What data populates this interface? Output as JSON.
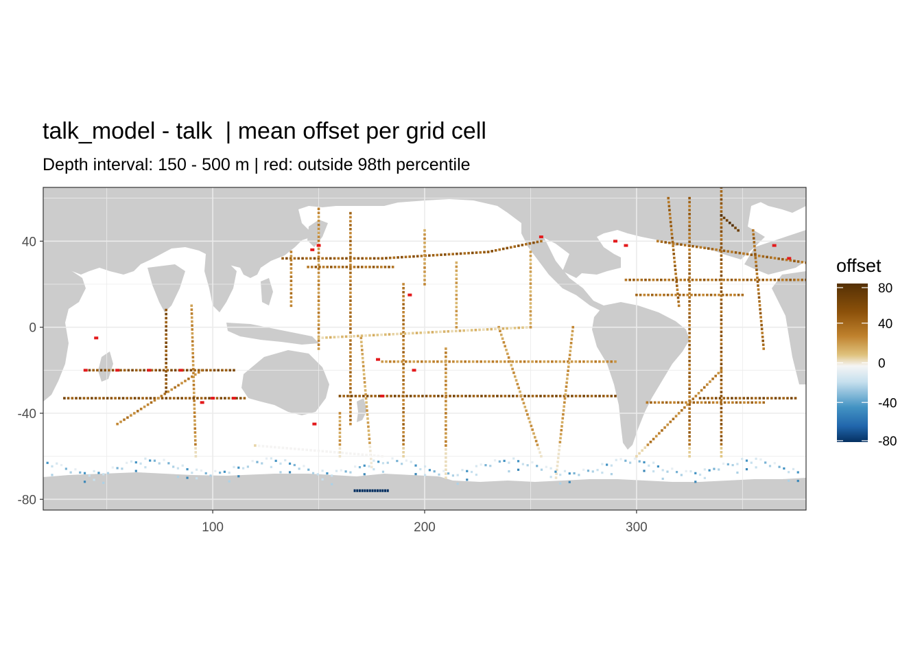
{
  "title": "talk_model - talk  | mean offset per grid cell",
  "subtitle": "Depth interval: 150 - 500 m | red: outside 98th percentile",
  "chart_data": {
    "type": "heatmap",
    "x_ticks": [
      100,
      200,
      300
    ],
    "y_ticks": [
      40,
      0,
      -40,
      -80
    ],
    "xlim": [
      20,
      380
    ],
    "ylim": [
      -85,
      65
    ],
    "legend": {
      "title": "offset",
      "ticks": [
        80,
        40,
        0,
        -40,
        -80
      ],
      "range": [
        -80,
        80
      ],
      "placement": "right"
    },
    "colors": {
      "land": "#cccccc",
      "ocean": "#ffffff",
      "outlier": "#e31a1c",
      "scale_low": "#053061",
      "scale_mid": "#f5f5f5",
      "scale_high": "#543005"
    },
    "tracks": [
      {
        "points": [
          [
            133,
            32
          ],
          [
            180,
            32
          ],
          [
            230,
            35
          ],
          [
            255,
            40
          ]
        ],
        "value": 55
      },
      {
        "points": [
          [
            150,
            55
          ],
          [
            150,
            -10
          ]
        ],
        "value": 35
      },
      {
        "points": [
          [
            165,
            53
          ],
          [
            165,
            -45
          ]
        ],
        "value": 45
      },
      {
        "points": [
          [
            137,
            35
          ],
          [
            137,
            10
          ]
        ],
        "value": 40
      },
      {
        "points": [
          [
            145,
            28
          ],
          [
            185,
            28
          ]
        ],
        "value": 50
      },
      {
        "points": [
          [
            90,
            10
          ],
          [
            92,
            -60
          ]
        ],
        "value": 35
      },
      {
        "points": [
          [
            78,
            8
          ],
          [
            78,
            -30
          ]
        ],
        "value": 60
      },
      {
        "points": [
          [
            40,
            -20
          ],
          [
            110,
            -20
          ]
        ],
        "value": 60
      },
      {
        "points": [
          [
            30,
            -33
          ],
          [
            115,
            -33
          ]
        ],
        "value": 60
      },
      {
        "points": [
          [
            160,
            -32
          ],
          [
            290,
            -32
          ]
        ],
        "value": 60
      },
      {
        "points": [
          [
            180,
            -16
          ],
          [
            290,
            -16
          ]
        ],
        "value": 35
      },
      {
        "points": [
          [
            190,
            20
          ],
          [
            190,
            -60
          ]
        ],
        "value": 45
      },
      {
        "points": [
          [
            210,
            -10
          ],
          [
            210,
            -70
          ]
        ],
        "value": 35
      },
      {
        "points": [
          [
            235,
            0
          ],
          [
            255,
            -60
          ]
        ],
        "value": 30
      },
      {
        "points": [
          [
            270,
            0
          ],
          [
            262,
            -70
          ]
        ],
        "value": 30
      },
      {
        "points": [
          [
            170,
            -5
          ],
          [
            175,
            -65
          ]
        ],
        "value": 25
      },
      {
        "points": [
          [
            55,
            -45
          ],
          [
            95,
            -20
          ]
        ],
        "value": 40
      },
      {
        "points": [
          [
            310,
            40
          ],
          [
            380,
            30
          ]
        ],
        "value": 50
      },
      {
        "points": [
          [
            295,
            22
          ],
          [
            380,
            22
          ]
        ],
        "value": 50
      },
      {
        "points": [
          [
            330,
            -33
          ],
          [
            375,
            -33
          ]
        ],
        "value": 60
      },
      {
        "points": [
          [
            325,
            60
          ],
          [
            325,
            -60
          ]
        ],
        "value": 50
      },
      {
        "points": [
          [
            340,
            65
          ],
          [
            340,
            -60
          ]
        ],
        "value": 55
      },
      {
        "points": [
          [
            315,
            60
          ],
          [
            320,
            10
          ]
        ],
        "value": 50
      },
      {
        "points": [
          [
            355,
            45
          ],
          [
            360,
            -10
          ]
        ],
        "value": 50
      },
      {
        "points": [
          [
            300,
            -60
          ],
          [
            340,
            -20
          ]
        ],
        "value": 40
      },
      {
        "points": [
          [
            305,
            -35
          ],
          [
            360,
            -35
          ]
        ],
        "value": 45
      },
      {
        "points": [
          [
            300,
            15
          ],
          [
            350,
            15
          ]
        ],
        "value": 45
      },
      {
        "points": [
          [
            340,
            52
          ],
          [
            348,
            45
          ]
        ],
        "value": 75
      },
      {
        "points": [
          [
            150,
            -5
          ],
          [
            250,
            0
          ]
        ],
        "value": 15
      },
      {
        "points": [
          [
            120,
            -55
          ],
          [
            180,
            -60
          ]
        ],
        "value": 15
      },
      {
        "points": [
          [
            200,
            45
          ],
          [
            200,
            20
          ]
        ],
        "value": 30
      },
      {
        "points": [
          [
            215,
            30
          ],
          [
            215,
            0
          ]
        ],
        "value": 25
      },
      {
        "points": [
          [
            250,
            35
          ],
          [
            250,
            0
          ]
        ],
        "value": 25
      },
      {
        "points": [
          [
            160,
            -40
          ],
          [
            160,
            -60
          ]
        ],
        "value": 30
      }
    ],
    "southern_ocean_values": [
      -15,
      -30,
      -10,
      -20,
      -40,
      -5
    ],
    "outliers": [
      [
        40,
        -20
      ],
      [
        55,
        -20
      ],
      [
        70,
        -20
      ],
      [
        85,
        -20
      ],
      [
        100,
        -33
      ],
      [
        110,
        -33
      ],
      [
        95,
        -35
      ],
      [
        45,
        -5
      ],
      [
        150,
        38
      ],
      [
        147,
        36
      ],
      [
        290,
        40
      ],
      [
        295,
        38
      ],
      [
        365,
        38
      ],
      [
        372,
        32
      ],
      [
        180,
        -32
      ],
      [
        178,
        -15
      ],
      [
        195,
        -20
      ],
      [
        148,
        -45
      ],
      [
        193,
        15
      ],
      [
        255,
        42
      ]
    ],
    "deep_blue_patch": [
      [
        167,
        -76
      ],
      [
        183,
        -76
      ]
    ]
  }
}
